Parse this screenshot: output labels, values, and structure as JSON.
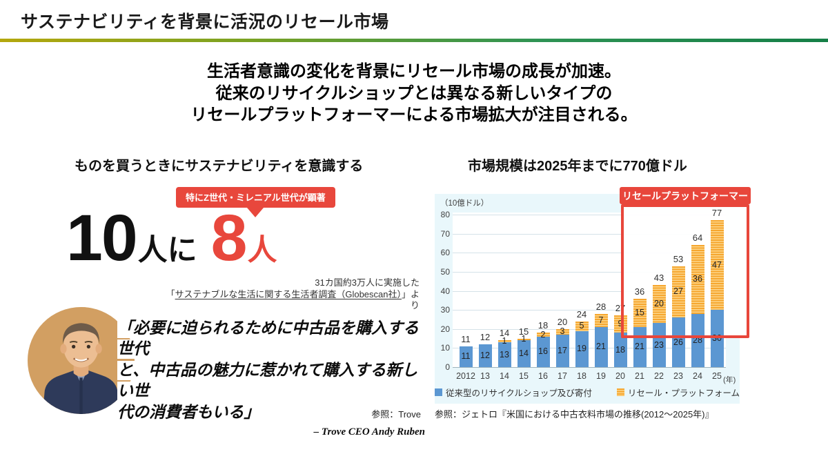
{
  "header": {
    "title": "サステナビリティを背景に活況のリセール市場"
  },
  "headline": {
    "lines": [
      "生活者意識の変化を背景にリセール市場の成長が加速。",
      "従来のリサイクルショップとは異なる新しいタイプの",
      "リセールプラットフォーマーによる市場拡大が注目される。"
    ]
  },
  "left_panel": {
    "heading": "ものを買うときにサステナビリティを意識する",
    "badge": "特にZ世代・ミレニアル世代が顕著",
    "stat": {
      "value1": "10",
      "unit1": "人に",
      "value2": "8",
      "unit2": "人"
    },
    "source": {
      "line1": "31カ国約3万人に実施した",
      "prefix": "「",
      "link": "サステナブルな生活に関する生活者調査（Globescan社）",
      "suffix": "」より"
    },
    "quote": {
      "lines": [
        "「必要に迫られるために中古品を購入する世代",
        "と、中古品の魅力に惹かれて購入する新しい世",
        "代の消費者もいる」"
      ],
      "attribution": "– Trove CEO Andy Ruben"
    },
    "reference": "参照：Trove"
  },
  "right_panel": {
    "heading": "市場規模は2025年までに770億ドル",
    "highlight_label": "リセールプラットフォーマー",
    "caption": "参照：ジェトロ『米国における中古衣料市場の推移(2012～2025年)』"
  },
  "chart_data": {
    "type": "bar",
    "stacked": true,
    "unit_label": "（10億ドル）",
    "categories": [
      "2012",
      "13",
      "14",
      "15",
      "16",
      "17",
      "18",
      "19",
      "20",
      "21",
      "22",
      "23",
      "24",
      "25"
    ],
    "x_suffix": "(年)",
    "series": [
      {
        "name": "従来型のリサイクルショップ及び寄付",
        "color": "#5b97d2",
        "values": [
          11,
          12,
          13,
          14,
          16,
          17,
          19,
          21,
          18,
          21,
          23,
          26,
          28,
          30
        ]
      },
      {
        "name": "リセール・プラットフォーム",
        "color": "#f8b040",
        "values": [
          0,
          0,
          1,
          1,
          2,
          3,
          5,
          7,
          9,
          15,
          20,
          27,
          36,
          47
        ]
      }
    ],
    "totals": [
      11,
      12,
      14,
      15,
      18,
      20,
      24,
      28,
      27,
      36,
      43,
      53,
      64,
      77
    ],
    "ylim": [
      0,
      80
    ],
    "yticks": [
      0,
      10,
      20,
      30,
      40,
      50,
      60,
      70,
      80
    ],
    "grid": true,
    "legend_position": "bottom"
  },
  "colors": {
    "accent_red": "#e8463b",
    "bar_blue": "#5b97d2",
    "bar_orange": "#f8b040",
    "chart_bg": "#e9f7fb"
  }
}
